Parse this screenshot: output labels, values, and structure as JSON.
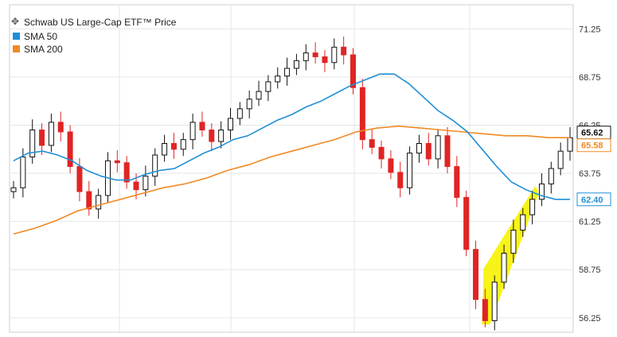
{
  "chart_data": {
    "type": "line",
    "title": "Schwab US Large-Cap ETF™ Price",
    "ylim": [
      55.5,
      72.5
    ],
    "y_ticks": [
      56.25,
      58.75,
      61.25,
      63.75,
      66.25,
      68.75,
      71.25
    ],
    "y_tick_labels": [
      "56.25",
      "58.75",
      "61.25",
      "63.75",
      "66.25",
      "68.75",
      "71.25"
    ],
    "grid": true,
    "legend_position": "top-left",
    "series": [
      {
        "name": "SMA 50",
        "color": "#1f8fd6",
        "last_value": "62.40",
        "values": [
          64.4,
          64.8,
          64.9,
          64.7,
          64.4,
          63.9,
          63.6,
          63.4,
          63.4,
          63.7,
          63.9,
          64.0,
          64.4,
          64.8,
          65.1,
          65.5,
          65.7,
          66.1,
          66.5,
          66.8,
          67.2,
          67.5,
          67.9,
          68.3,
          68.6,
          68.9,
          68.9,
          68.4,
          67.7,
          67.0,
          66.5,
          65.9,
          65.0,
          64.1,
          63.3,
          62.9,
          62.6,
          62.4,
          62.4
        ]
      },
      {
        "name": "SMA 200",
        "color": "#f08a24",
        "last_value": "65.58",
        "values": [
          60.6,
          60.9,
          61.3,
          61.8,
          62.1,
          62.4,
          62.7,
          63.0,
          63.2,
          63.5,
          63.9,
          64.2,
          64.6,
          64.9,
          65.2,
          65.5,
          65.9,
          66.1,
          66.2,
          66.1,
          66.0,
          65.9,
          65.8,
          65.7,
          65.7,
          65.6,
          65.6
        ]
      },
      {
        "name": "Price",
        "color": "#111111",
        "last_value": "65.62",
        "values": [
          63.0,
          64.6,
          66.0,
          65.2,
          66.4,
          65.9,
          64.1,
          62.8,
          61.9,
          62.6,
          64.4,
          64.3,
          63.3,
          62.9,
          63.6,
          64.7,
          65.3,
          65.0,
          65.5,
          66.4,
          66.0,
          65.4,
          66.0,
          66.6,
          67.1,
          67.6,
          68.0,
          68.5,
          68.8,
          69.2,
          69.6,
          70.0,
          69.8,
          69.5,
          70.3,
          69.9,
          68.2,
          65.5,
          65.1,
          64.5,
          63.8,
          63.0,
          64.8,
          65.3,
          64.5,
          65.7,
          64.1,
          62.5,
          59.8,
          57.2,
          56.1,
          58.1,
          59.6,
          60.8,
          61.6,
          62.4,
          63.2,
          64.0,
          64.9,
          65.6
        ]
      }
    ]
  }
}
